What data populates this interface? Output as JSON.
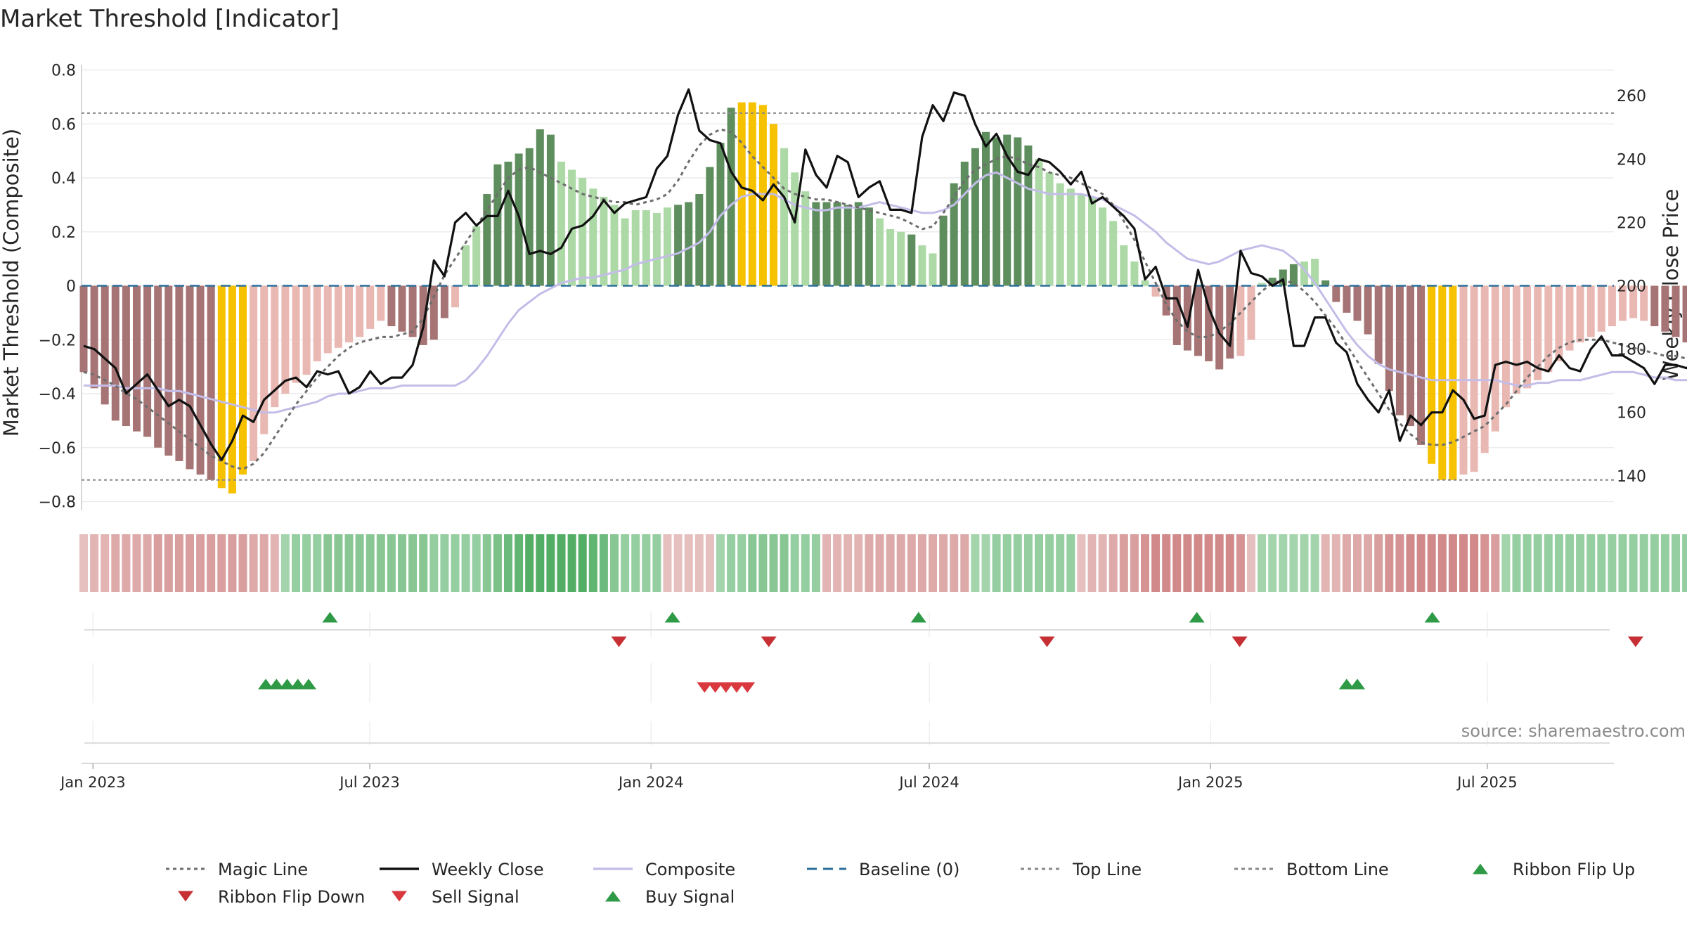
{
  "chart_data": {
    "type": "bar",
    "title": "Market Threshold [Indicator]",
    "ylabel_left": "Market Threshold (Composite)",
    "ylabel_right": "Weekly Close Price",
    "ylim_left": [
      -0.82,
      0.84
    ],
    "ylim_right": [
      136,
      276
    ],
    "yticks_left": [
      "0.8",
      "0.6",
      "0.4",
      "0.2",
      "0",
      "−0.2",
      "−0.4",
      "−0.6",
      "−0.8"
    ],
    "yticks_left_values": [
      0.8,
      0.6,
      0.4,
      0.2,
      0,
      -0.2,
      -0.4,
      -0.6,
      -0.8
    ],
    "yticks_right": [
      "260",
      "240",
      "220",
      "200",
      "180",
      "160",
      "140"
    ],
    "yticks_right_values": [
      260,
      240,
      220,
      200,
      180,
      160,
      140
    ],
    "x_start": "2023-01-02",
    "xticks": [
      {
        "label": "Jan 2023",
        "date": "2023-01-01"
      },
      {
        "label": "Jul 2023",
        "date": "2023-07-01"
      },
      {
        "label": "Jan 2024",
        "date": "2024-01-01"
      },
      {
        "label": "Jul 2024",
        "date": "2024-07-01"
      },
      {
        "label": "Jan 2025",
        "date": "2025-01-01"
      },
      {
        "label": "Jul 2025",
        "date": "2025-07-01"
      }
    ],
    "top_line": 0.64,
    "bottom_line": -0.72,
    "grid": true,
    "colors": {
      "bear_dark": "#a67474",
      "bear_light": "#e9b8b3",
      "bull_dark": "#5e8d5e",
      "bull_light": "#acd9a6",
      "extreme": "#f6c200",
      "magic_line": "#6e6e6e",
      "close": "#111111",
      "composite": "#c3bde8",
      "baseline": "#2b6f9b",
      "ribbon_up": "#2e9a46",
      "signal_down": "#d9383e",
      "ribbon_down": "#c62f33"
    },
    "series": [
      {
        "name": "Market Threshold bars",
        "values": [
          -0.32,
          -0.38,
          -0.44,
          -0.5,
          -0.52,
          -0.54,
          -0.56,
          -0.6,
          -0.63,
          -0.65,
          -0.68,
          -0.7,
          -0.72,
          -0.75,
          -0.77,
          -0.7,
          -0.65,
          -0.55,
          -0.45,
          -0.4,
          -0.36,
          -0.33,
          -0.28,
          -0.25,
          -0.23,
          -0.21,
          -0.19,
          -0.16,
          -0.13,
          -0.15,
          -0.17,
          -0.19,
          -0.22,
          -0.2,
          -0.12,
          -0.08,
          0.15,
          0.22,
          0.34,
          0.45,
          0.46,
          0.49,
          0.51,
          0.58,
          0.56,
          0.46,
          0.43,
          0.4,
          0.36,
          0.33,
          0.3,
          0.25,
          0.28,
          0.28,
          0.27,
          0.29,
          0.3,
          0.31,
          0.34,
          0.44,
          0.53,
          0.66,
          0.68,
          0.68,
          0.67,
          0.6,
          0.51,
          0.42,
          0.35,
          0.31,
          0.31,
          0.31,
          0.3,
          0.31,
          0.29,
          0.25,
          0.21,
          0.2,
          0.19,
          0.15,
          0.12,
          0.26,
          0.38,
          0.46,
          0.51,
          0.57,
          0.55,
          0.56,
          0.55,
          0.52,
          0.47,
          0.42,
          0.38,
          0.36,
          0.34,
          0.33,
          0.29,
          0.24,
          0.15,
          0.09,
          0.02,
          -0.04,
          -0.11,
          -0.22,
          -0.24,
          -0.26,
          -0.28,
          -0.31,
          -0.27,
          -0.26,
          -0.2,
          0.01,
          0.03,
          0.06,
          0.08,
          0.09,
          0.1,
          0.02,
          -0.06,
          -0.1,
          -0.13,
          -0.18,
          -0.29,
          -0.39,
          -0.48,
          -0.52,
          -0.59,
          -0.66,
          -0.72,
          -0.72,
          -0.7,
          -0.69,
          -0.62,
          -0.54,
          -0.45,
          -0.4,
          -0.38,
          -0.35,
          -0.32,
          -0.28,
          -0.24,
          -0.21,
          -0.19,
          -0.17,
          -0.15,
          -0.13,
          -0.12,
          -0.13,
          -0.15,
          -0.17,
          -0.19,
          -0.21,
          -0.24,
          -0.26,
          -0.27,
          -0.28,
          -0.29,
          -0.3,
          -0.3,
          -0.3,
          -0.3,
          -0.28
        ],
        "colors": "dddddddddddddeeelllllllllllllddddddllldddddddlllllllllllddddddeeeelllddddddllldlldddddddddlllllllllllldddddddllldddllddddddddddeeelllllllllllllllllldddddddddl"
      },
      {
        "name": "Magic Line",
        "values": [
          -0.32,
          -0.33,
          -0.35,
          -0.37,
          -0.4,
          -0.42,
          -0.45,
          -0.48,
          -0.51,
          -0.54,
          -0.57,
          -0.6,
          -0.63,
          -0.65,
          -0.67,
          -0.68,
          -0.66,
          -0.62,
          -0.56,
          -0.5,
          -0.44,
          -0.39,
          -0.34,
          -0.3,
          -0.26,
          -0.23,
          -0.21,
          -0.2,
          -0.19,
          -0.19,
          -0.18,
          -0.17,
          -0.12,
          -0.04,
          0.04,
          0.1,
          0.16,
          0.22,
          0.28,
          0.34,
          0.4,
          0.43,
          0.44,
          0.42,
          0.4,
          0.38,
          0.36,
          0.34,
          0.33,
          0.32,
          0.31,
          0.31,
          0.3,
          0.31,
          0.32,
          0.34,
          0.39,
          0.46,
          0.52,
          0.56,
          0.58,
          0.57,
          0.53,
          0.48,
          0.44,
          0.4,
          0.36,
          0.34,
          0.33,
          0.32,
          0.32,
          0.31,
          0.3,
          0.29,
          0.28,
          0.27,
          0.26,
          0.25,
          0.23,
          0.21,
          0.22,
          0.27,
          0.33,
          0.39,
          0.43,
          0.45,
          0.47,
          0.48,
          0.47,
          0.45,
          0.44,
          0.42,
          0.41,
          0.4,
          0.38,
          0.36,
          0.34,
          0.3,
          0.24,
          0.17,
          0.09,
          0.01,
          -0.07,
          -0.13,
          -0.17,
          -0.19,
          -0.19,
          -0.17,
          -0.14,
          -0.1,
          -0.06,
          -0.02,
          0.01,
          0.02,
          0.01,
          -0.02,
          -0.06,
          -0.11,
          -0.16,
          -0.22,
          -0.28,
          -0.34,
          -0.4,
          -0.46,
          -0.51,
          -0.55,
          -0.58,
          -0.59,
          -0.59,
          -0.58,
          -0.56,
          -0.54,
          -0.52,
          -0.48,
          -0.44,
          -0.39,
          -0.34,
          -0.3,
          -0.26,
          -0.23,
          -0.21,
          -0.2,
          -0.2,
          -0.2,
          -0.21,
          -0.22,
          -0.23,
          -0.24,
          -0.25,
          -0.26,
          -0.26,
          -0.27,
          -0.27,
          -0.28,
          -0.28,
          -0.28,
          -0.28
        ]
      },
      {
        "name": "Weekly Close",
        "values": [
          181,
          180,
          177,
          174,
          166,
          169,
          172,
          167,
          162,
          164,
          162,
          156,
          150,
          145,
          151,
          159,
          157,
          164,
          167,
          170,
          171,
          168,
          173,
          172,
          173,
          166,
          168,
          173,
          169,
          171,
          171,
          175,
          187,
          208,
          203,
          220,
          223,
          219,
          222,
          222,
          230,
          222,
          210,
          211,
          210,
          212,
          218,
          219,
          222,
          227,
          223,
          226,
          227,
          228,
          237,
          241,
          254,
          262,
          249,
          246,
          245,
          236,
          231,
          230,
          227,
          232,
          228,
          220,
          243,
          235,
          231,
          241,
          239,
          228,
          231,
          233,
          224,
          224,
          223,
          247,
          257,
          252,
          261,
          260,
          251,
          244,
          248,
          241,
          236,
          235,
          240,
          239,
          236,
          232,
          236,
          226,
          228,
          225,
          222,
          218,
          202,
          206,
          196,
          196,
          187,
          205,
          193,
          185,
          181,
          211,
          204,
          203,
          200,
          202,
          181,
          181,
          190,
          190,
          182,
          179,
          169,
          164,
          160,
          167,
          151,
          159,
          156,
          160,
          160,
          167,
          164,
          158,
          159,
          175,
          176,
          175,
          176,
          174,
          173,
          178,
          174,
          173,
          180,
          184,
          178,
          178,
          176,
          174,
          169,
          175,
          175,
          174,
          176,
          177,
          178,
          176
        ]
      },
      {
        "name": "Composite",
        "values": [
          -0.37,
          -0.37,
          -0.37,
          -0.37,
          -0.38,
          -0.38,
          -0.38,
          -0.38,
          -0.39,
          -0.39,
          -0.4,
          -0.41,
          -0.42,
          -0.43,
          -0.44,
          -0.45,
          -0.46,
          -0.47,
          -0.47,
          -0.46,
          -0.45,
          -0.44,
          -0.43,
          -0.41,
          -0.4,
          -0.4,
          -0.39,
          -0.38,
          -0.38,
          -0.38,
          -0.37,
          -0.37,
          -0.37,
          -0.37,
          -0.37,
          -0.37,
          -0.35,
          -0.31,
          -0.26,
          -0.2,
          -0.14,
          -0.09,
          -0.06,
          -0.03,
          -0.01,
          0.01,
          0.02,
          0.03,
          0.03,
          0.04,
          0.05,
          0.06,
          0.08,
          0.09,
          0.1,
          0.11,
          0.12,
          0.14,
          0.16,
          0.2,
          0.26,
          0.3,
          0.33,
          0.34,
          0.34,
          0.34,
          0.32,
          0.3,
          0.29,
          0.28,
          0.28,
          0.29,
          0.29,
          0.29,
          0.3,
          0.31,
          0.3,
          0.29,
          0.28,
          0.27,
          0.27,
          0.28,
          0.3,
          0.34,
          0.38,
          0.41,
          0.42,
          0.4,
          0.38,
          0.36,
          0.35,
          0.34,
          0.34,
          0.34,
          0.34,
          0.33,
          0.32,
          0.3,
          0.28,
          0.26,
          0.23,
          0.2,
          0.16,
          0.13,
          0.1,
          0.09,
          0.08,
          0.09,
          0.11,
          0.13,
          0.14,
          0.15,
          0.14,
          0.13,
          0.1,
          0.06,
          0.01,
          -0.05,
          -0.11,
          -0.17,
          -0.22,
          -0.26,
          -0.29,
          -0.31,
          -0.32,
          -0.33,
          -0.34,
          -0.35,
          -0.35,
          -0.35,
          -0.35,
          -0.35,
          -0.35,
          -0.35,
          -0.36,
          -0.37,
          -0.37,
          -0.36,
          -0.36,
          -0.35,
          -0.35,
          -0.35,
          -0.34,
          -0.33,
          -0.32,
          -0.32,
          -0.32,
          -0.33,
          -0.34,
          -0.34,
          -0.35,
          -0.35,
          -0.35,
          -0.35,
          -0.35,
          -0.35,
          -0.35,
          -0.35
        ]
      },
      {
        "name": "Baseline (0)",
        "values": [
          0
        ]
      },
      {
        "name": "Top Line",
        "values": [
          0.64
        ]
      },
      {
        "name": "Bottom Line",
        "values": [
          -0.72
        ]
      }
    ],
    "ribbon": {
      "values": [
        -0.2,
        -0.3,
        -0.3,
        -0.4,
        -0.4,
        -0.4,
        -0.4,
        -0.5,
        -0.5,
        -0.5,
        -0.5,
        -0.5,
        -0.5,
        -0.5,
        -0.5,
        -0.5,
        -0.4,
        -0.4,
        -0.3,
        0.3,
        0.4,
        0.4,
        0.4,
        0.5,
        0.5,
        0.5,
        0.5,
        0.5,
        0.5,
        0.5,
        0.5,
        0.5,
        0.5,
        0.4,
        0.4,
        0.4,
        0.4,
        0.4,
        0.5,
        0.6,
        0.7,
        0.8,
        0.9,
        0.9,
        0.9,
        0.9,
        0.9,
        0.9,
        0.8,
        0.7,
        0.5,
        0.4,
        0.4,
        0.4,
        0.4,
        -0.2,
        -0.2,
        -0.2,
        -0.2,
        -0.2,
        0.3,
        0.4,
        0.4,
        0.5,
        0.5,
        0.5,
        0.5,
        0.4,
        0.4,
        0.4,
        -0.3,
        -0.3,
        -0.3,
        -0.3,
        -0.4,
        -0.4,
        -0.4,
        -0.4,
        -0.4,
        -0.4,
        -0.4,
        -0.4,
        -0.4,
        -0.4,
        0.3,
        0.3,
        0.4,
        0.4,
        0.4,
        0.4,
        0.4,
        0.4,
        0.4,
        0.4,
        -0.2,
        -0.3,
        -0.3,
        -0.4,
        -0.5,
        -0.5,
        -0.6,
        -0.7,
        -0.7,
        -0.7,
        -0.7,
        -0.7,
        -0.7,
        -0.7,
        -0.7,
        -0.6,
        -0.2,
        0.3,
        0.3,
        0.3,
        0.3,
        0.3,
        0.3,
        -0.3,
        -0.3,
        -0.4,
        -0.4,
        -0.4,
        -0.5,
        -0.6,
        -0.6,
        -0.7,
        -0.7,
        -0.7,
        -0.7,
        -0.7,
        -0.7,
        -0.7,
        -0.6,
        -0.5,
        0.3,
        0.4,
        0.4,
        0.4,
        0.4,
        0.4,
        0.4,
        0.4,
        0.4,
        0.4,
        0.4,
        0.4,
        0.4,
        0.4,
        0.4,
        0.4,
        0.4,
        0.4,
        0.4,
        0.4,
        0.3,
        0.3,
        -0.2,
        -0.2,
        -0.2,
        -0.2
      ]
    },
    "ribbon_flip_up_dates": [
      "2023-06-05",
      "2024-01-15",
      "2024-06-24",
      "2024-12-23",
      "2025-05-26"
    ],
    "ribbon_flip_down_dates": [
      "2023-12-11",
      "2024-03-18",
      "2024-09-16",
      "2025-01-20",
      "2025-10-06"
    ],
    "buy_signal_dates": [
      "2023-04-24",
      "2023-05-01",
      "2023-05-08",
      "2023-05-15",
      "2023-05-22",
      "2025-03-31",
      "2025-04-07"
    ],
    "sell_signal_dates": [
      "2024-02-05",
      "2024-02-12",
      "2024-02-19",
      "2024-02-26",
      "2024-03-04"
    ],
    "legend": [
      {
        "label": "Magic Line",
        "kind": "dotted",
        "color": "#6e6e6e"
      },
      {
        "label": "Weekly Close",
        "kind": "solid",
        "color": "#111111"
      },
      {
        "label": "Composite",
        "kind": "solid",
        "color": "#c3bde8"
      },
      {
        "label": "Baseline (0)",
        "kind": "dashed",
        "color": "#2b6f9b"
      },
      {
        "label": "Top Line",
        "kind": "dotted",
        "color": "#8a8a8a"
      },
      {
        "label": "Bottom Line",
        "kind": "dotted",
        "color": "#8a8a8a"
      },
      {
        "label": "Ribbon Flip Up",
        "kind": "tri-up",
        "color": "#2e9a46"
      },
      {
        "label": "Ribbon Flip Down",
        "kind": "tri-down",
        "color": "#c62f33"
      },
      {
        "label": "Sell Signal",
        "kind": "tri-down",
        "color": "#d9383e"
      },
      {
        "label": "Buy Signal",
        "kind": "tri-up",
        "color": "#2e9a46"
      }
    ],
    "legend_placement": "bottom",
    "source_text": "source: sharemaestro.com"
  }
}
